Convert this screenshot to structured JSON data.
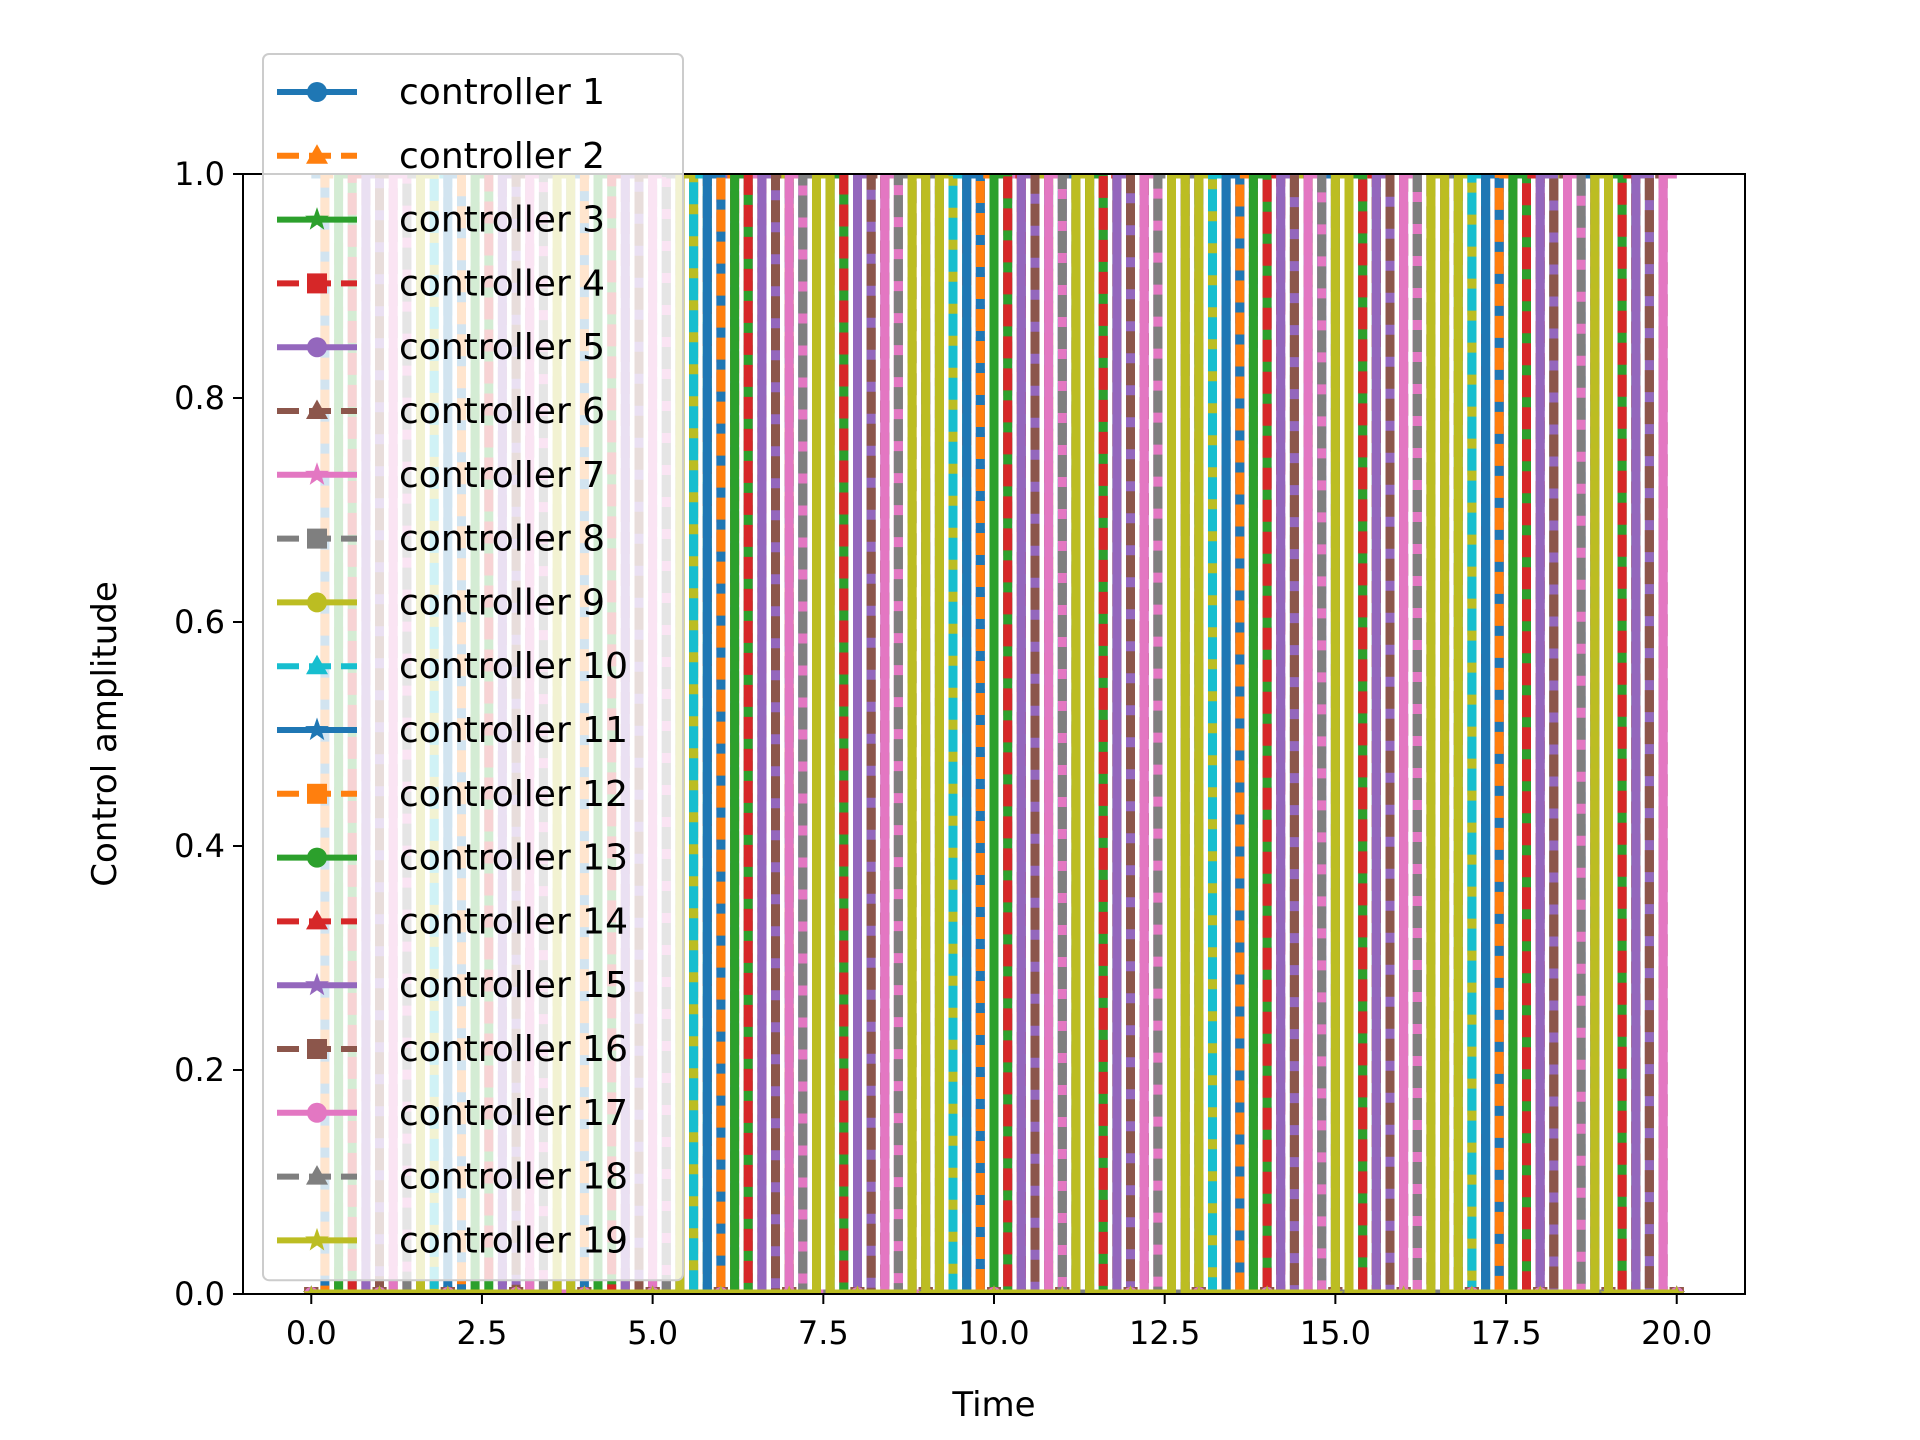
{
  "chart_data": {
    "type": "line",
    "xlabel": "Time",
    "ylabel": "Control amplitude",
    "xlim": [
      -1.0,
      21.0
    ],
    "ylim": [
      0.0,
      1.0
    ],
    "xticks": [
      "0.0",
      "2.5",
      "5.0",
      "7.5",
      "10.0",
      "12.5",
      "15.0",
      "17.5",
      "20.0"
    ],
    "xtick_values": [
      0,
      2.5,
      5,
      7.5,
      10,
      12.5,
      15,
      17.5,
      20
    ],
    "yticks": [
      "0.0",
      "0.2",
      "0.4",
      "0.6",
      "0.8",
      "1.0"
    ],
    "ytick_values": [
      0,
      0.2,
      0.4,
      0.6,
      0.8,
      1.0
    ],
    "grid": false,
    "legend_position": "upper-left",
    "time_range": [
      0,
      20
    ],
    "step_count": 100,
    "series": [
      {
        "name": "controller 1",
        "color": "#1f77b4",
        "marker": "circle",
        "dash": "solid"
      },
      {
        "name": "controller 2",
        "color": "#ff7f0e",
        "marker": "triangle",
        "dash": "dashed"
      },
      {
        "name": "controller 3",
        "color": "#2ca02c",
        "marker": "star",
        "dash": "solid"
      },
      {
        "name": "controller 4",
        "color": "#d62728",
        "marker": "square",
        "dash": "dashed"
      },
      {
        "name": "controller 5",
        "color": "#9467bd",
        "marker": "circle",
        "dash": "solid"
      },
      {
        "name": "controller 6",
        "color": "#8c564b",
        "marker": "triangle",
        "dash": "dashed"
      },
      {
        "name": "controller 7",
        "color": "#e377c2",
        "marker": "star",
        "dash": "solid"
      },
      {
        "name": "controller 8",
        "color": "#7f7f7f",
        "marker": "square",
        "dash": "dashed"
      },
      {
        "name": "controller 9",
        "color": "#bcbd22",
        "marker": "circle",
        "dash": "solid"
      },
      {
        "name": "controller 10",
        "color": "#17becf",
        "marker": "triangle",
        "dash": "dashed"
      },
      {
        "name": "controller 11",
        "color": "#1f77b4",
        "marker": "star",
        "dash": "solid"
      },
      {
        "name": "controller 12",
        "color": "#ff7f0e",
        "marker": "square",
        "dash": "dashed"
      },
      {
        "name": "controller 13",
        "color": "#2ca02c",
        "marker": "circle",
        "dash": "solid"
      },
      {
        "name": "controller 14",
        "color": "#d62728",
        "marker": "triangle",
        "dash": "dashed"
      },
      {
        "name": "controller 15",
        "color": "#9467bd",
        "marker": "star",
        "dash": "solid"
      },
      {
        "name": "controller 16",
        "color": "#8c564b",
        "marker": "square",
        "dash": "dashed"
      },
      {
        "name": "controller 17",
        "color": "#e377c2",
        "marker": "circle",
        "dash": "solid"
      },
      {
        "name": "controller 18",
        "color": "#7f7f7f",
        "marker": "triangle",
        "dash": "dashed"
      },
      {
        "name": "controller 19",
        "color": "#bcbd22",
        "marker": "star",
        "dash": "solid"
      }
    ]
  }
}
